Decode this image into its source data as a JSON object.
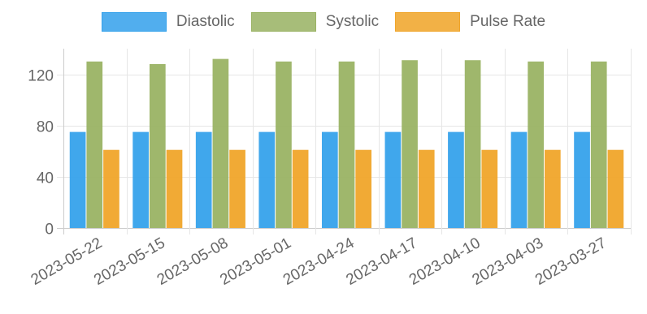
{
  "chart_data": {
    "type": "bar",
    "categories": [
      "2023-05-22",
      "2023-05-15",
      "2023-05-08",
      "2023-05-01",
      "2023-04-24",
      "2023-04-17",
      "2023-04-10",
      "2023-04-03",
      "2023-03-27"
    ],
    "series": [
      {
        "name": "Diastolic",
        "color": "#36a2eb",
        "values": [
          75,
          75,
          75,
          75,
          75,
          75,
          75,
          75,
          75
        ]
      },
      {
        "name": "Systolic",
        "color": "#9ab364",
        "values": [
          130,
          128,
          132,
          130,
          130,
          131,
          131,
          130,
          130
        ]
      },
      {
        "name": "Pulse Rate",
        "color": "#f0a52a",
        "values": [
          61,
          61,
          61,
          61,
          61,
          61,
          61,
          61,
          61
        ]
      }
    ],
    "title": "",
    "xlabel": "",
    "ylabel": "",
    "ylim": [
      0,
      140
    ],
    "yticks": [
      0,
      40,
      80,
      120
    ],
    "grid": true,
    "legend_position": "top"
  }
}
